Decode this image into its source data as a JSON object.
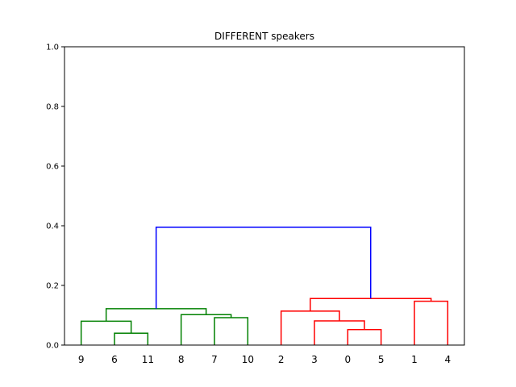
{
  "chart_data": {
    "type": "dendrogram",
    "title": "DIFFERENT speakers",
    "xlabel": "",
    "ylabel": "",
    "ylim": [
      0,
      1.0
    ],
    "yticks": [
      "0.0",
      "0.2",
      "0.4",
      "0.6",
      "0.8",
      "1.0"
    ],
    "leaves": [
      "9",
      "6",
      "11",
      "8",
      "7",
      "10",
      "2",
      "3",
      "0",
      "5",
      "1",
      "4"
    ],
    "cluster_colors": {
      "left": "#008000",
      "right": "#ff0000",
      "root": "#0000ff"
    },
    "links": [
      {
        "left": "6",
        "right": "11",
        "height": 0.04,
        "color": "#008000"
      },
      {
        "left": "9",
        "right": "6,11",
        "height": 0.08,
        "color": "#008000"
      },
      {
        "left": "7",
        "right": "10",
        "height": 0.092,
        "color": "#008000"
      },
      {
        "left": "8",
        "right": "7,10",
        "height": 0.102,
        "color": "#008000"
      },
      {
        "left": "9,6,11",
        "right": "8,7,10",
        "height": 0.122,
        "color": "#008000"
      },
      {
        "left": "0",
        "right": "5",
        "height": 0.052,
        "color": "#ff0000"
      },
      {
        "left": "3",
        "right": "0,5",
        "height": 0.081,
        "color": "#ff0000"
      },
      {
        "left": "2",
        "right": "3,0,5",
        "height": 0.114,
        "color": "#ff0000"
      },
      {
        "left": "1",
        "right": "4",
        "height": 0.147,
        "color": "#ff0000"
      },
      {
        "left": "2,3,0,5",
        "right": "1,4",
        "height": 0.156,
        "color": "#ff0000"
      },
      {
        "left": "left-cluster",
        "right": "right-cluster",
        "height": 0.395,
        "color": "#0000ff"
      }
    ]
  }
}
